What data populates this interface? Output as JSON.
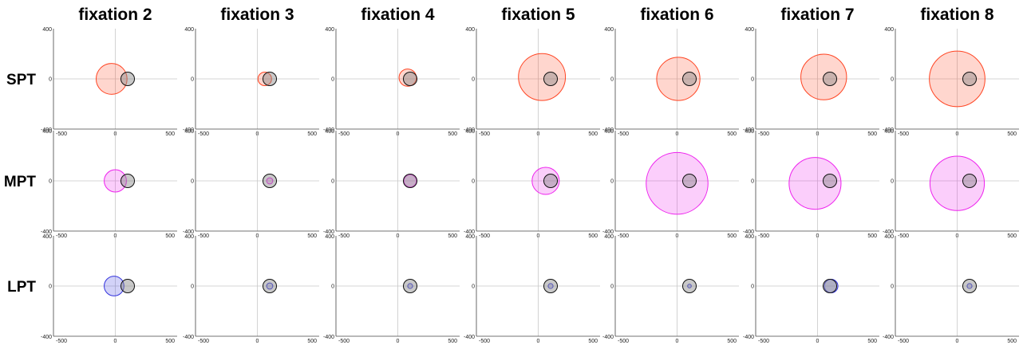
{
  "chart_data": {
    "type": "scatter",
    "columns": [
      "fixation 2",
      "fixation 3",
      "fixation 4",
      "fixation 5",
      "fixation 6",
      "fixation 7",
      "fixation 8"
    ],
    "rows": [
      "SPT",
      "MPT",
      "LPT"
    ],
    "xlim": [
      -500,
      500
    ],
    "ylim": [
      -400,
      400
    ],
    "x_ticks": [
      "-500",
      "0",
      "500"
    ],
    "y_ticks": [
      "400",
      "0",
      "-400"
    ],
    "grid": false,
    "colors": {
      "SPT": "#ff4422",
      "MPT": "#ee22ee",
      "LPT": "#3333dd",
      "reference": "#888888"
    },
    "reference_circle": {
      "x": 100,
      "y": 0,
      "r": 55
    },
    "circles": [
      [
        {
          "x": -30,
          "y": 0,
          "r": 125
        },
        {
          "x": 60,
          "y": 0,
          "r": 55
        },
        {
          "x": 80,
          "y": 10,
          "r": 70
        },
        {
          "x": 30,
          "y": 15,
          "r": 190
        },
        {
          "x": 10,
          "y": 0,
          "r": 175
        },
        {
          "x": 50,
          "y": 15,
          "r": 185
        },
        {
          "x": 0,
          "y": 0,
          "r": 225
        }
      ],
      [
        {
          "x": 0,
          "y": 0,
          "r": 90
        },
        {
          "x": 100,
          "y": 0,
          "r": 25
        },
        {
          "x": 100,
          "y": 0,
          "r": 50
        },
        {
          "x": 60,
          "y": 0,
          "r": 110
        },
        {
          "x": 0,
          "y": -20,
          "r": 250
        },
        {
          "x": -20,
          "y": -20,
          "r": 210
        },
        {
          "x": 0,
          "y": -20,
          "r": 220
        }
      ],
      [
        {
          "x": -10,
          "y": 0,
          "r": 80
        },
        {
          "x": 100,
          "y": 0,
          "r": 25
        },
        {
          "x": 100,
          "y": 0,
          "r": 20
        },
        {
          "x": 100,
          "y": 0,
          "r": 20
        },
        {
          "x": 100,
          "y": 0,
          "r": 15
        },
        {
          "x": 110,
          "y": 0,
          "r": 55
        },
        {
          "x": 100,
          "y": 0,
          "r": 20
        }
      ]
    ]
  }
}
